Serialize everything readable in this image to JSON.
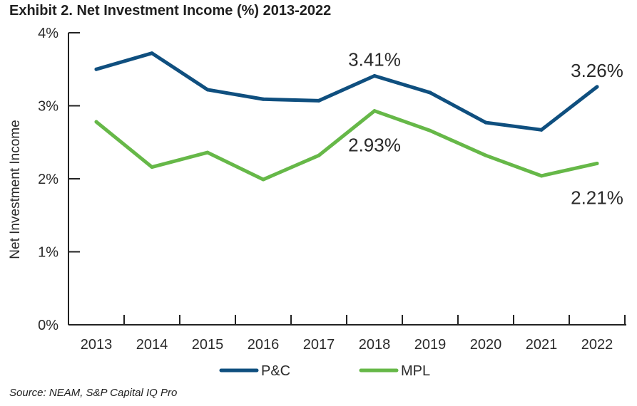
{
  "title": "Exhibit 2. Net Investment Income (%) 2013-2022",
  "source": "Source: NEAM, S&P Capital IQ Pro",
  "colors": {
    "pc": "#0f4f7f",
    "mpl": "#66b848",
    "axis": "#222222"
  },
  "chart_data": {
    "type": "line",
    "title": "Exhibit 2. Net Investment Income (%) 2013-2022",
    "xlabel": "",
    "ylabel": "Net Investment Income",
    "categories": [
      "2013",
      "2014",
      "2015",
      "2016",
      "2017",
      "2018",
      "2019",
      "2020",
      "2021",
      "2022"
    ],
    "ylim": [
      0,
      4
    ],
    "yticks": [
      0,
      1,
      2,
      3,
      4
    ],
    "ytick_labels": [
      "0%",
      "1%",
      "2%",
      "3%",
      "4%"
    ],
    "grid": false,
    "legend_position": "bottom",
    "series": [
      {
        "name": "P&C",
        "color": "#0f4f7f",
        "values": [
          3.5,
          3.72,
          3.22,
          3.09,
          3.07,
          3.41,
          3.18,
          2.77,
          2.67,
          3.26
        ]
      },
      {
        "name": "MPL",
        "color": "#66b848",
        "values": [
          2.78,
          2.16,
          2.36,
          1.99,
          2.32,
          2.93,
          2.66,
          2.32,
          2.04,
          2.21
        ]
      }
    ],
    "annotations": [
      {
        "series": "P&C",
        "category": "2018",
        "text": "3.41%",
        "placement": "above"
      },
      {
        "series": "MPL",
        "category": "2018",
        "text": "2.93%",
        "placement": "below"
      },
      {
        "series": "P&C",
        "category": "2022",
        "text": "3.26%",
        "placement": "above"
      },
      {
        "series": "MPL",
        "category": "2022",
        "text": "2.21%",
        "placement": "below"
      }
    ]
  }
}
